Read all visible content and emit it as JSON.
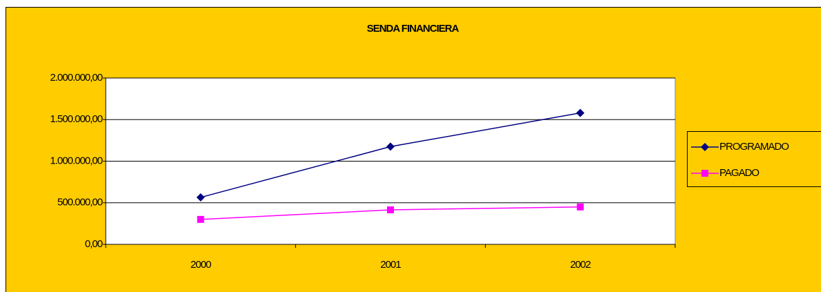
{
  "chart_data": {
    "type": "line",
    "title": "SENDA FINANCIERA",
    "categories": [
      "2000",
      "2001",
      "2002"
    ],
    "series": [
      {
        "name": "PROGRAMADO",
        "color": "#000080",
        "marker": "diamond",
        "values": [
          565000,
          1175000,
          1580000
        ]
      },
      {
        "name": "PAGADO",
        "color": "#ff00ff",
        "marker": "square",
        "values": [
          300000,
          415000,
          450000
        ]
      }
    ],
    "ylim": [
      0,
      2000000
    ],
    "yticks": [
      {
        "value": 0,
        "label": "0,00"
      },
      {
        "value": 500000,
        "label": "500.000,00"
      },
      {
        "value": 1000000,
        "label": "1.000.000,00"
      },
      {
        "value": 1500000,
        "label": "1.500.000,00"
      },
      {
        "value": 2000000,
        "label": "2.000.000,00"
      }
    ],
    "grid": true,
    "legend": "right",
    "background": "#ffcc00"
  }
}
